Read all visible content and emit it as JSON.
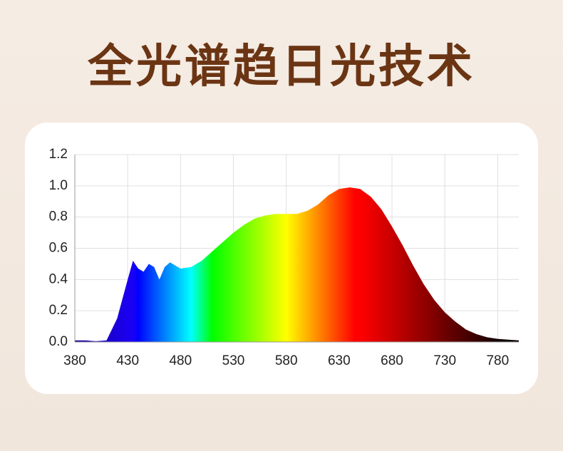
{
  "title": "全光谱趋日光技术",
  "chart_data": {
    "type": "area",
    "x": [
      380,
      390,
      400,
      410,
      420,
      430,
      435,
      440,
      445,
      450,
      455,
      460,
      465,
      470,
      475,
      480,
      490,
      500,
      510,
      520,
      530,
      540,
      550,
      560,
      570,
      580,
      590,
      600,
      610,
      620,
      630,
      640,
      650,
      660,
      670,
      680,
      690,
      700,
      710,
      720,
      730,
      740,
      750,
      760,
      770,
      780,
      790,
      800
    ],
    "values": [
      0.01,
      0.01,
      0.005,
      0.01,
      0.15,
      0.4,
      0.52,
      0.47,
      0.45,
      0.5,
      0.48,
      0.4,
      0.48,
      0.51,
      0.49,
      0.47,
      0.48,
      0.52,
      0.58,
      0.64,
      0.7,
      0.75,
      0.79,
      0.81,
      0.82,
      0.82,
      0.82,
      0.84,
      0.88,
      0.94,
      0.98,
      0.99,
      0.98,
      0.93,
      0.85,
      0.74,
      0.62,
      0.49,
      0.37,
      0.27,
      0.19,
      0.13,
      0.08,
      0.05,
      0.03,
      0.02,
      0.015,
      0.01
    ],
    "xlim": [
      380,
      800
    ],
    "ylim": [
      0,
      1.2
    ],
    "xticks": [
      380,
      430,
      480,
      530,
      580,
      630,
      680,
      730,
      780
    ],
    "yticks": [
      {
        "value": 0,
        "label": "0.0"
      },
      0.2,
      0.4,
      0.6,
      0.8,
      {
        "value": 1,
        "label": "1.0"
      },
      1.2
    ],
    "grid": true
  }
}
